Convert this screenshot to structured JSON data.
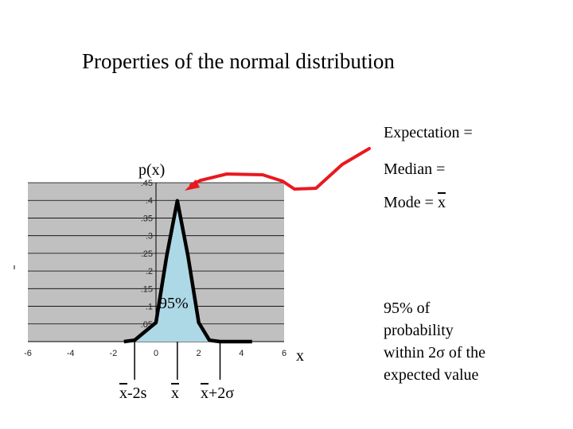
{
  "slide": {
    "title": "Properties of the normal distribution",
    "expectation_label": "Expectation =",
    "median_label": "Median =",
    "mode_label": "Mode = ",
    "mode_symbol": "x",
    "percent_text": "95% of probability within 2σ of the expected value"
  },
  "annotations": {
    "y_label": "p(x)",
    "x_label": "x",
    "inside_percent": "95%",
    "mean_minus": "x",
    "mean_minus_suffix": "-2s",
    "mean": "x",
    "mean_plus": "x",
    "mean_plus_suffix": "+2σ"
  },
  "colors": {
    "plot_bg": "#c0c0c0",
    "fill": "#add8e6",
    "arrow": "#e8191f",
    "curve": "#000000"
  },
  "chart_data": {
    "type": "area",
    "title": "",
    "xlabel": "x",
    "ylabel": "p(x)",
    "xlim": [
      -6,
      6
    ],
    "ylim": [
      0,
      0.45
    ],
    "x_ticks": [
      -6,
      -4,
      -2,
      0,
      2,
      4,
      6
    ],
    "y_ticks": [
      0.05,
      0.1,
      0.15,
      0.2,
      0.25,
      0.3,
      0.35,
      0.4,
      0.45
    ],
    "grid": true,
    "series": [
      {
        "x": [
          -1.5,
          -1,
          0,
          0.5,
          1,
          1.5,
          2,
          2.5,
          3,
          3.5,
          4,
          4.5
        ],
        "y": [
          0,
          0.004,
          0.054,
          0.242,
          0.399,
          0.242,
          0.054,
          0.004,
          0,
          0,
          0,
          0
        ]
      }
    ],
    "shaded_interval": [
      -1,
      3
    ]
  }
}
